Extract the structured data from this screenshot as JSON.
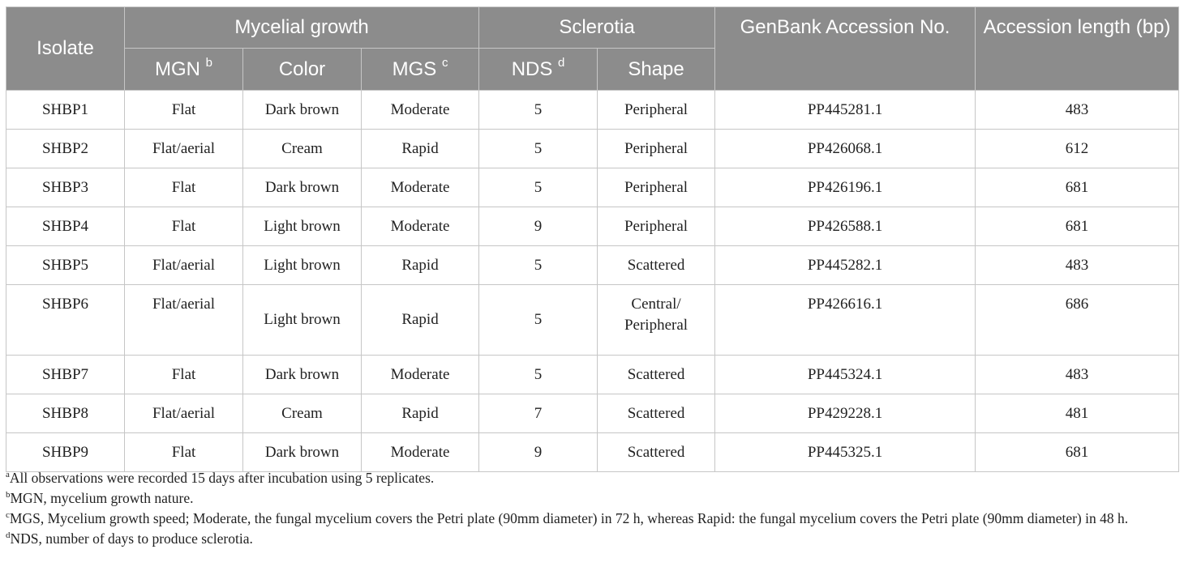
{
  "header": {
    "isolate": "Isolate",
    "mycelial_growth": "Mycelial growth",
    "sclerotia": "Sclerotia",
    "genbank": "GenBank Accession No.",
    "accession_length": "Accession length (bp)",
    "mgn": "MGN",
    "mgn_sup": "b",
    "color": "Color",
    "mgs": "MGS",
    "mgs_sup": "c",
    "nds": "NDS",
    "nds_sup": "d",
    "shape": "Shape"
  },
  "rows": [
    {
      "isolate": "SHBP1",
      "mgn": "Flat",
      "color": "Dark brown",
      "mgs": "Moderate",
      "nds": "5",
      "shape": "Peripheral",
      "genbank": "PP445281.1",
      "length": "483"
    },
    {
      "isolate": "SHBP2",
      "mgn": "Flat/aerial",
      "color": "Cream",
      "mgs": "Rapid",
      "nds": "5",
      "shape": "Peripheral",
      "genbank": "PP426068.1",
      "length": "612"
    },
    {
      "isolate": "SHBP3",
      "mgn": "Flat",
      "color": "Dark brown",
      "mgs": "Moderate",
      "nds": "5",
      "shape": "Peripheral",
      "genbank": "PP426196.1",
      "length": "681"
    },
    {
      "isolate": "SHBP4",
      "mgn": "Flat",
      "color": "Light brown",
      "mgs": "Moderate",
      "nds": "9",
      "shape": "Peripheral",
      "genbank": "PP426588.1",
      "length": "681"
    },
    {
      "isolate": "SHBP5",
      "mgn": "Flat/aerial",
      "color": "Light brown",
      "mgs": "Rapid",
      "nds": "5",
      "shape": "Scattered",
      "genbank": "PP445282.1",
      "length": "483"
    },
    {
      "isolate": "SHBP6",
      "mgn": "Flat/aerial",
      "color": "Light brown",
      "mgs": "Rapid",
      "nds": "5",
      "shape_line1": "Central/",
      "shape_line2": "Peripheral",
      "genbank": "PP426616.1",
      "length": "686"
    },
    {
      "isolate": "SHBP7",
      "mgn": "Flat",
      "color": "Dark brown",
      "mgs": "Moderate",
      "nds": "5",
      "shape": "Scattered",
      "genbank": "PP445324.1",
      "length": "483"
    },
    {
      "isolate": "SHBP8",
      "mgn": "Flat/aerial",
      "color": "Cream",
      "mgs": "Rapid",
      "nds": "7",
      "shape": "Scattered",
      "genbank": "PP429228.1",
      "length": "481"
    },
    {
      "isolate": "SHBP9",
      "mgn": "Flat",
      "color": "Dark brown",
      "mgs": "Moderate",
      "nds": "9",
      "shape": "Scattered",
      "genbank": "PP445325.1",
      "length": "681"
    }
  ],
  "footnotes": [
    {
      "mark": "a",
      "text": "All observations were recorded 15 days after incubation using 5 replicates."
    },
    {
      "mark": "b",
      "text": "MGN, mycelium growth nature."
    },
    {
      "mark": "c",
      "text": "MGS, Mycelium growth speed; Moderate, the fungal mycelium covers the Petri plate (90mm diameter) in 72 h, whereas Rapid: the fungal mycelium covers the Petri plate (90mm diameter) in 48 h."
    },
    {
      "mark": "d",
      "text": "NDS, number of days to produce sclerotia."
    }
  ]
}
